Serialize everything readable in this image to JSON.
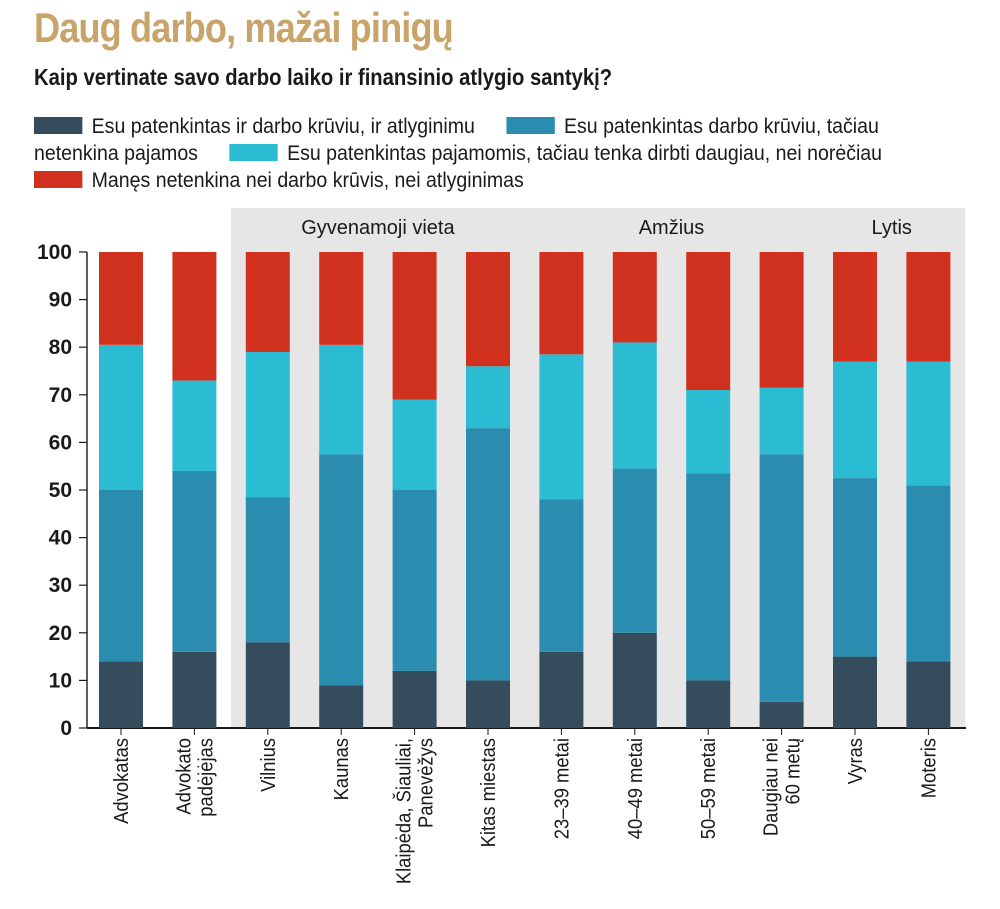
{
  "title": "Daug darbo, mažai pinigų",
  "subtitle": "Kaip vertinate savo darbo laiko ir finansinio atlygio santykį?",
  "colors": {
    "title": "#c9a46a",
    "group_band": "#e6e6e6"
  },
  "chart_data": {
    "type": "bar",
    "stacked": true,
    "ylim": [
      0,
      100
    ],
    "yticks": [
      "0",
      "10",
      "20",
      "30",
      "40",
      "50",
      "60",
      "70",
      "80",
      "90",
      "100"
    ],
    "categories": [
      "Advokatas",
      "Advokato\npadėjėjas",
      "Vilnius",
      "Kaunas",
      "Klaipėda, Šiauliai,\nPanevėžys",
      "Kitas miestas",
      "23–39 metai",
      "40–49 metai",
      "50–59 metai",
      "Daugiau nei\n60 metų",
      "Vyras",
      "Moteris"
    ],
    "groups": [
      {
        "label": "Gyvenamoji vieta",
        "from": 2,
        "to": 5
      },
      {
        "label": "Amžius",
        "from": 6,
        "to": 9
      },
      {
        "label": "Lytis",
        "from": 10,
        "to": 11
      }
    ],
    "series": [
      {
        "name": "Esu patenkintas ir darbo krūviu, ir atlyginimu",
        "color": "#344c5c",
        "values": [
          14,
          16,
          18,
          9,
          12,
          10,
          16,
          20,
          10,
          5.5,
          15,
          14
        ]
      },
      {
        "name": "Esu patenkintas darbo krūviu, tačiau netenkina pajamos",
        "color": "#2a8cae",
        "values": [
          36,
          38,
          30.5,
          48.5,
          38,
          53,
          32,
          34.5,
          43.5,
          52,
          37.5,
          37
        ]
      },
      {
        "name": "Esu patenkintas pajamomis, tačiau tenka dirbti daugiau, nei norėčiau",
        "color": "#2bbcd4",
        "values": [
          30.5,
          19,
          30.5,
          23,
          19,
          13,
          30.5,
          26.5,
          17.5,
          14,
          24.5,
          26
        ]
      },
      {
        "name": "Manęs netenkina nei darbo krūvis, nei atlyginimas",
        "color": "#d13220",
        "values": [
          19.5,
          27,
          21,
          19.5,
          31,
          24,
          21.5,
          19,
          29,
          28.5,
          23,
          23
        ]
      }
    ]
  }
}
